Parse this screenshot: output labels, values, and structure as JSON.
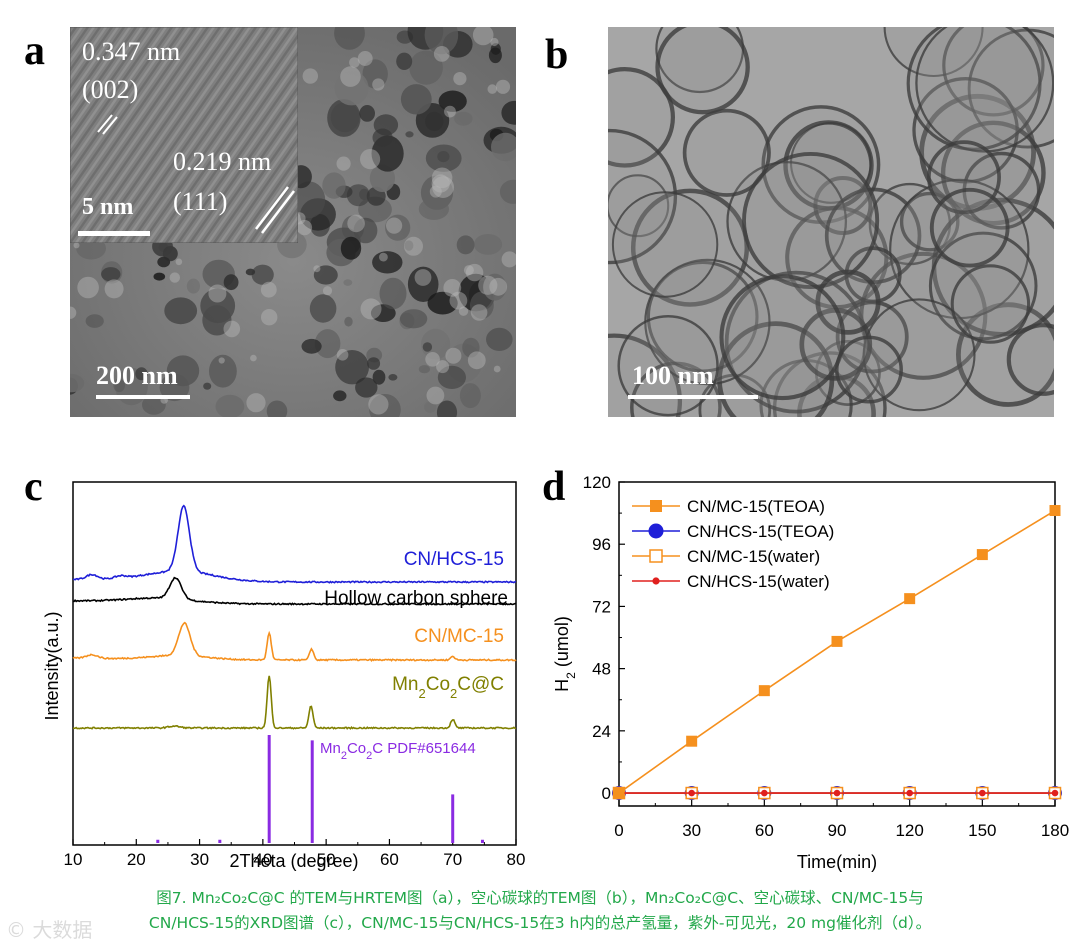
{
  "panels": {
    "a": {
      "letter": "a",
      "scale": "200 nm",
      "inset": {
        "scale": "5 nm",
        "fringe1": {
          "spacing": "0.347 nm",
          "plane": "(002)"
        },
        "fringe2": {
          "spacing": "0.219 nm",
          "plane": "(111)"
        }
      }
    },
    "b": {
      "letter": "b",
      "scale": "100 nm"
    },
    "c": {
      "letter": "c"
    },
    "d": {
      "letter": "d"
    }
  },
  "chart_data": [
    {
      "panel": "c",
      "type": "line",
      "xlabel": "2Theta (degree)",
      "ylabel": "Intensity(a.u.)",
      "xlim": [
        10,
        80
      ],
      "xticks": [
        "10",
        "20",
        "30",
        "40",
        "50",
        "60",
        "70",
        "80"
      ],
      "series": [
        {
          "name": "CN/HCS-15",
          "color": "#1f1fd8",
          "peaks": [
            [
              13.0,
              0.8
            ],
            [
              17.5,
              0.4
            ],
            [
              27.5,
              10.5
            ]
          ]
        },
        {
          "name": "Hollow carbon sphere",
          "color": "#000000",
          "peaks": [
            [
              26.2,
              3.4
            ]
          ]
        },
        {
          "name": "CN/MC-15",
          "color": "#f5901e",
          "peaks": [
            [
              13.0,
              0.6
            ],
            [
              27.6,
              5.2
            ],
            [
              41.0,
              4.4
            ],
            [
              47.7,
              1.8
            ],
            [
              70.0,
              0.6
            ]
          ]
        },
        {
          "name": "Mn₂Co₂C@C",
          "color": "#808000",
          "peaks": [
            [
              26.0,
              0.3
            ],
            [
              41.0,
              8.4
            ],
            [
              47.6,
              3.6
            ],
            [
              70.0,
              1.4
            ]
          ]
        }
      ],
      "reference": {
        "name": "Mn₂Co₂C PDF#651644",
        "color": "#8a2be2",
        "lines": [
          [
            23.4,
            0.03
          ],
          [
            33.2,
            0.03
          ],
          [
            41.0,
            1.0
          ],
          [
            47.8,
            0.95
          ],
          [
            70.0,
            0.45
          ],
          [
            74.7,
            0.03
          ]
        ]
      },
      "labels": {
        "hcs15": "CN/HCS-15",
        "hollow": "Hollow carbon sphere",
        "mc15": "CN/MC-15",
        "mncoc_main": "Mn",
        "mncoc_sub1": "2",
        "mncoc_mid": "Co",
        "mncoc_sub2": "2",
        "mncoc_tail": "C@C",
        "ref_main": "Mn",
        "ref_sub1": "2",
        "ref_mid": "Co",
        "ref_sub2": "2",
        "ref_tail": "C PDF#651644"
      }
    },
    {
      "panel": "d",
      "type": "line",
      "xlabel": "Time(min)",
      "ylabel_main": "H",
      "ylabel_sub": "2",
      "ylabel_tail": " (umol)",
      "xlim": [
        0,
        180
      ],
      "ylim": [
        -5,
        120
      ],
      "x": [
        0,
        30,
        60,
        90,
        120,
        150,
        180
      ],
      "xticks": [
        "0",
        "30",
        "60",
        "90",
        "120",
        "150",
        "180"
      ],
      "yticks": [
        "0",
        "24",
        "48",
        "72",
        "96",
        "120"
      ],
      "legend_position": "top-left",
      "series": [
        {
          "name": "CN/MC-15(TEOA)",
          "color": "#f5901e",
          "marker": "filled-square",
          "values": [
            0,
            20,
            39.5,
            58.5,
            75,
            92,
            109
          ]
        },
        {
          "name": "CN/HCS-15(TEOA)",
          "color": "#1f1fd8",
          "marker": "filled-circle",
          "values": [
            0,
            0,
            0,
            0,
            0,
            0,
            0
          ]
        },
        {
          "name": "CN/MC-15(water)",
          "color": "#f5901e",
          "marker": "open-square",
          "values": [
            0,
            0,
            0,
            0,
            0,
            0,
            0
          ]
        },
        {
          "name": "CN/HCS-15(water)",
          "color": "#e0201e",
          "marker": "small-circle",
          "values": [
            0,
            0,
            0,
            0,
            0,
            0,
            0
          ]
        }
      ]
    }
  ],
  "caption": {
    "line1": "图7. Mn₂Co₂C@C 的TEM与HRTEM图（a），空心碳球的TEM图（b），Mn₂Co₂C@C、空心碳球、CN/MC-15与",
    "line2": "CN/HCS-15的XRD图谱（c），CN/MC-15与CN/HCS-15在3 h内的总产氢量，紫外-可见光，20 mg催化剂（d）。"
  },
  "watermark": "© 大数据"
}
